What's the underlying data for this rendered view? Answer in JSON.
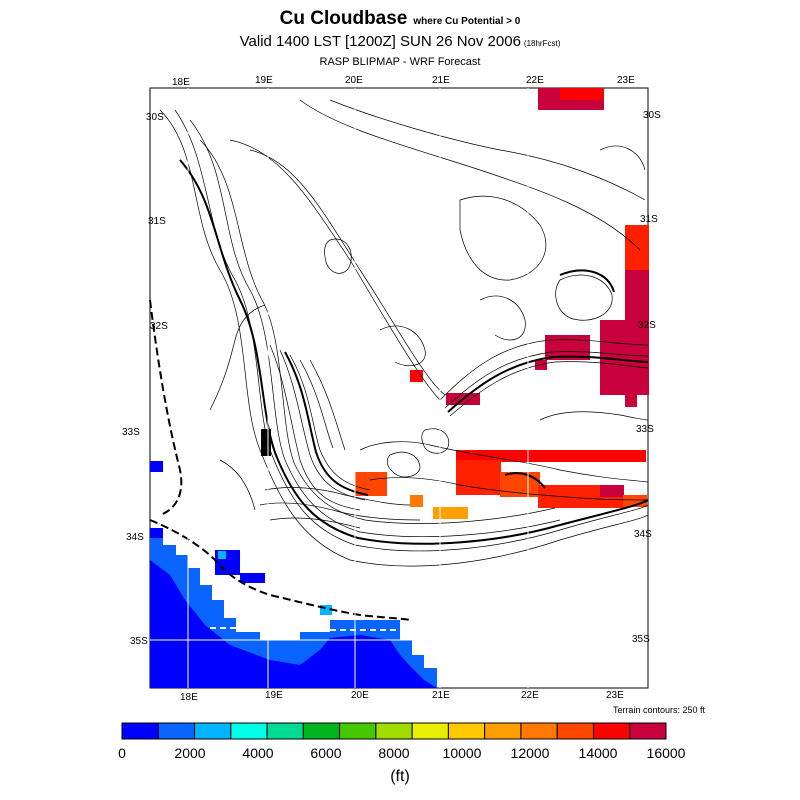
{
  "header": {
    "title": "Cu Cloudbase",
    "title_qualifier": "where Cu Potential > 0",
    "valid_line": "Valid 1400 LST [1200Z] SUN 26 Nov 2006",
    "forecast_tag": "(18hrFcst)",
    "source_line": "RASP BLIPMAP - WRF Forecast"
  },
  "map": {
    "lon_labels_top": [
      "18E",
      "19E",
      "20E",
      "21E",
      "22E",
      "23E"
    ],
    "lon_labels_bottom": [
      "18E",
      "19E",
      "20E",
      "21E",
      "22E",
      "23E"
    ],
    "lat_labels_left": [
      "30S",
      "31S",
      "32S",
      "33S",
      "34S",
      "35S"
    ],
    "lat_labels_right": [
      "30S",
      "31S",
      "32S",
      "33S",
      "34S",
      "35S"
    ],
    "terrain_note": "Terrain contours: 250 ft"
  },
  "colorbar": {
    "colors": [
      "#0000ff",
      "#0a64ff",
      "#00b4ff",
      "#00ffe6",
      "#00dc96",
      "#00b41e",
      "#46c800",
      "#a0dc00",
      "#e6f000",
      "#ffc800",
      "#ffa000",
      "#ff7800",
      "#ff4600",
      "#ff0000",
      "#c8003c"
    ],
    "tick_labels": [
      "0",
      "2000",
      "4000",
      "6000",
      "8000",
      "10000",
      "12000",
      "14000",
      "16000"
    ],
    "units": "(ft)"
  },
  "colors": {
    "low": "#0000ff",
    "mid": "#ffa000",
    "high_red": "#ff2000",
    "high_crimson": "#b4003c",
    "terrain_contour": "#000000"
  }
}
